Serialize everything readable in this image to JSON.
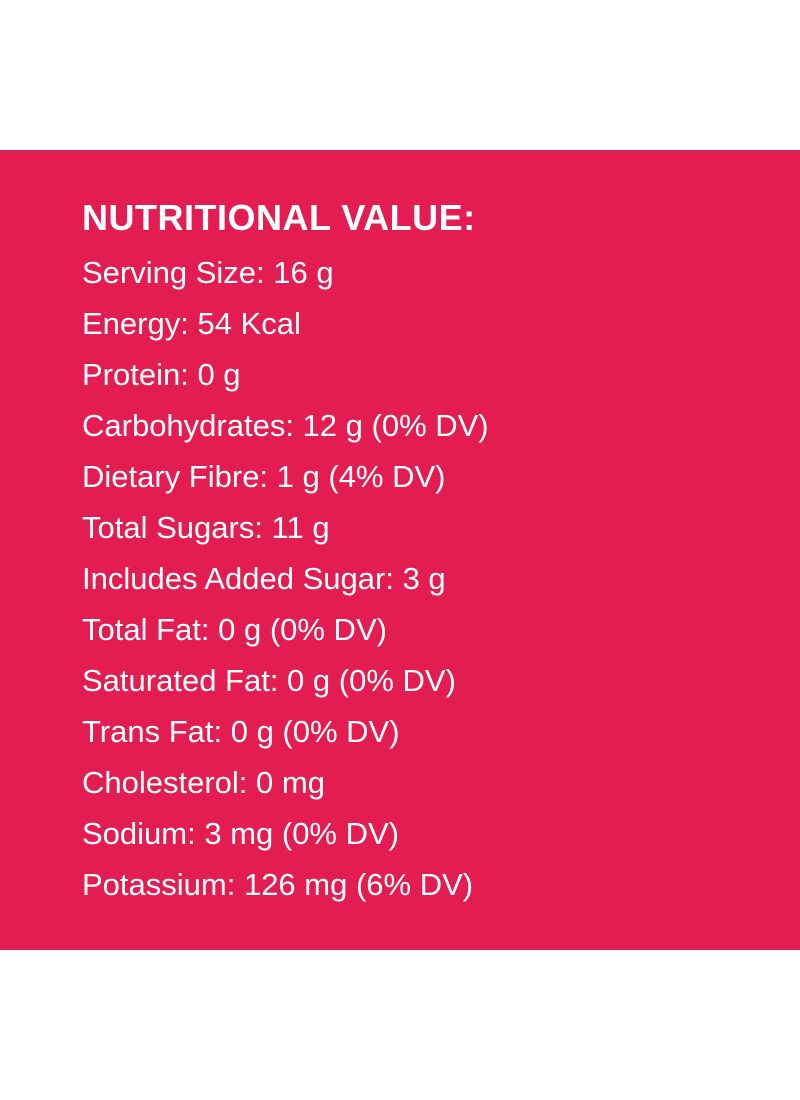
{
  "panel": {
    "background_color": "#e31c52",
    "text_color": "#ffffff"
  },
  "heading": "NUTRITIONAL VALUE:",
  "items": [
    "Serving Size: 16 g",
    "Energy: 54 Kcal",
    "Protein: 0 g",
    "Carbohydrates: 12 g (0% DV)",
    "Dietary Fibre: 1 g (4% DV)",
    "Total Sugars: 11 g",
    "Includes Added Sugar: 3 g",
    "Total Fat: 0 g (0% DV)",
    "Saturated Fat: 0 g (0% DV)",
    "Trans Fat: 0 g (0% DV)",
    "Cholesterol: 0 mg",
    "Sodium: 3 mg (0% DV)",
    "Potassium: 126 mg (6% DV)"
  ]
}
